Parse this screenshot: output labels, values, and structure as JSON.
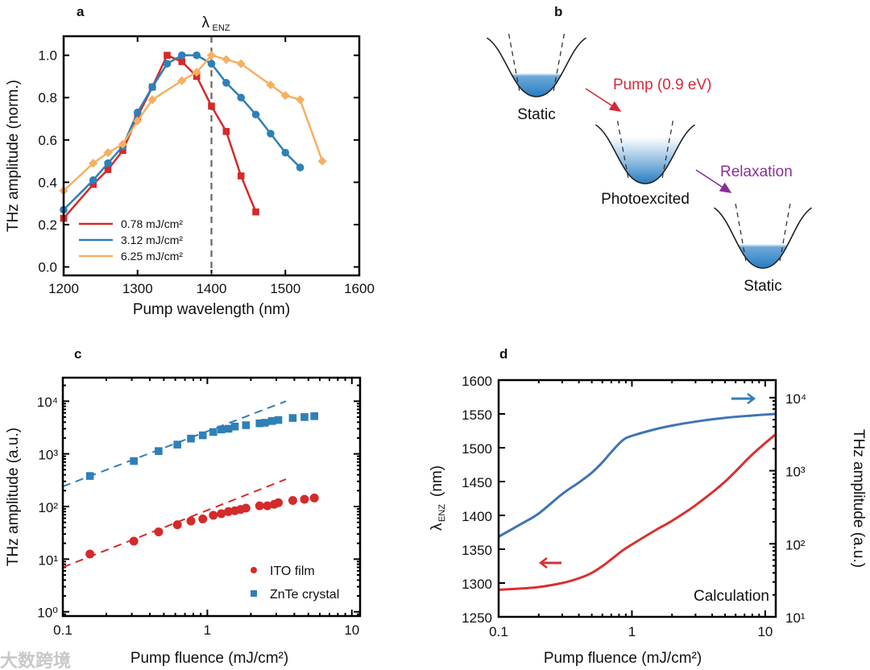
{
  "panels": {
    "a": "a",
    "b": "b",
    "c": "c",
    "d": "d"
  },
  "watermark": "大数跨境",
  "chart_data": [
    {
      "type": "line",
      "panel": "a",
      "title": "",
      "xlabel": "Pump wavelength (nm)",
      "ylabel": "THz amplitude (norm.)",
      "xlim": [
        1200,
        1600
      ],
      "ylim": [
        -0.04,
        1.09
      ],
      "xticks": [
        1200,
        1300,
        1400,
        1500,
        1600
      ],
      "xtick_labels": [
        "1200",
        "1300",
        "1400",
        "1500",
        "1600"
      ],
      "yticks": [
        0,
        0.2,
        0.4,
        0.6,
        0.8,
        1.0
      ],
      "ytick_labels": [
        "0.0",
        "0.2",
        "0.4",
        "0.6",
        "0.8",
        "1.0"
      ],
      "vline": {
        "x": 1400,
        "label": "λ",
        "label_sub": "ENZ"
      },
      "legend_position": "lower-left",
      "series": [
        {
          "name": "0.78 mJ/cm²",
          "color": "#d42a2a",
          "marker": "square",
          "x": [
            1200,
            1240,
            1260,
            1280,
            1300,
            1320,
            1340,
            1360,
            1380,
            1400,
            1420,
            1440,
            1460
          ],
          "y": [
            0.23,
            0.39,
            0.46,
            0.55,
            0.71,
            0.85,
            1.0,
            0.97,
            0.9,
            0.76,
            0.64,
            0.43,
            0.26
          ]
        },
        {
          "name": "3.12 mJ/cm²",
          "color": "#2f7fb8",
          "marker": "circle",
          "x": [
            1200,
            1240,
            1260,
            1280,
            1300,
            1320,
            1340,
            1360,
            1380,
            1400,
            1420,
            1440,
            1460,
            1480,
            1500,
            1520
          ],
          "y": [
            0.27,
            0.41,
            0.49,
            0.57,
            0.73,
            0.85,
            0.96,
            1.0,
            1.0,
            0.96,
            0.87,
            0.8,
            0.72,
            0.63,
            0.54,
            0.47
          ]
        },
        {
          "name": "6.25 mJ/cm²",
          "color": "#f5b061",
          "marker": "diamond",
          "x": [
            1200,
            1240,
            1260,
            1280,
            1300,
            1320,
            1360,
            1380,
            1400,
            1420,
            1440,
            1480,
            1500,
            1520,
            1550
          ],
          "y": [
            0.36,
            0.49,
            0.54,
            0.58,
            0.69,
            0.79,
            0.88,
            0.92,
            1.0,
            0.98,
            0.96,
            0.86,
            0.81,
            0.79,
            0.5
          ]
        }
      ]
    },
    {
      "type": "scatter",
      "panel": "c",
      "xscale": "log",
      "yscale": "log",
      "xlabel": "Pump fluence (mJ/cm²)",
      "ylabel": "THz amplitude (a.u.)",
      "xlim": [
        0.1,
        11.4
      ],
      "ylim": [
        0.83,
        28000
      ],
      "xticks": [
        0.1,
        1,
        10
      ],
      "xtick_labels": [
        "0.1",
        "1",
        "10"
      ],
      "yticks": [
        1,
        10,
        100,
        1000,
        10000
      ],
      "ytick_labels": [
        "10⁰",
        "10¹",
        "10²",
        "10³",
        "10⁴"
      ],
      "legend_position": "lower-right",
      "series": [
        {
          "name": "ITO film",
          "color": "#d42a2a",
          "marker": "circle",
          "x": [
            0.154,
            0.31,
            0.46,
            0.62,
            0.77,
            0.93,
            1.1,
            1.25,
            1.4,
            1.55,
            1.7,
            1.85,
            2.3,
            2.6,
            2.9,
            3.1,
            3.9,
            4.7,
            5.5
          ],
          "y": [
            12.5,
            22,
            33,
            45,
            53,
            58,
            68,
            73,
            80,
            83,
            88,
            93,
            103,
            103,
            110,
            118,
            130,
            137,
            145
          ],
          "fit": {
            "x": [
              0.1,
              3.5
            ],
            "y": [
              7,
              330
            ]
          }
        },
        {
          "name": "ZnTe crystal",
          "color": "#2f7fb8",
          "marker": "square",
          "x": [
            0.154,
            0.31,
            0.46,
            0.62,
            0.77,
            0.93,
            1.1,
            1.25,
            1.4,
            1.55,
            1.85,
            2.3,
            2.5,
            2.8,
            3.1,
            3.9,
            4.7,
            5.5
          ],
          "y": [
            380,
            730,
            1130,
            1500,
            1950,
            2250,
            2600,
            2900,
            3000,
            3300,
            3500,
            3800,
            3900,
            4200,
            4400,
            4800,
            5000,
            5200
          ],
          "fit": {
            "x": [
              0.1,
              3.5
            ],
            "y": [
              240,
              10000
            ]
          }
        }
      ]
    },
    {
      "type": "line",
      "panel": "d",
      "xscale": "log",
      "xlabel": "Pump fluence (mJ/cm²)",
      "ylabel_left": "λ",
      "ylabel_left_sub": "ENZ",
      "ylabel_left_unit": " (nm)",
      "ylabel_right": "THz amplitude (a.u.)",
      "annotation": "Calculation",
      "xlim": [
        0.1,
        12
      ],
      "ylim_left": [
        1250,
        1600
      ],
      "ylim_right": [
        10,
        17400
      ],
      "xticks": [
        0.1,
        1,
        10
      ],
      "xtick_labels": [
        "0.1",
        "1",
        "10"
      ],
      "yticks_left": [
        1250,
        1300,
        1350,
        1400,
        1450,
        1500,
        1550,
        1600
      ],
      "ytick_labels_left": [
        "1250",
        "1300",
        "1350",
        "1400",
        "1450",
        "1500",
        "1550",
        "1600"
      ],
      "yticks_right": [
        10,
        100,
        1000,
        10000
      ],
      "ytick_labels_right": [
        "10¹",
        "10²",
        "10³",
        "10⁴"
      ],
      "series": [
        {
          "name": "λENZ",
          "axis": "left",
          "color": "#d93030",
          "x": [
            0.1,
            0.15,
            0.2,
            0.3,
            0.4,
            0.5,
            0.6,
            0.7,
            0.85,
            1,
            1.5,
            2,
            3,
            5,
            8,
            12
          ],
          "y": [
            1290,
            1292,
            1294,
            1300,
            1307,
            1315,
            1325,
            1335,
            1348,
            1357,
            1378,
            1392,
            1415,
            1450,
            1490,
            1520
          ]
        },
        {
          "name": "THz amplitude",
          "axis": "right",
          "color": "#3f74b5",
          "x": [
            0.1,
            0.15,
            0.2,
            0.3,
            0.4,
            0.5,
            0.6,
            0.7,
            0.85,
            1,
            1.5,
            2,
            3,
            5,
            8,
            12
          ],
          "y": [
            125,
            190,
            260,
            480,
            690,
            940,
            1300,
            1800,
            2600,
            3000,
            3700,
            4150,
            4700,
            5300,
            5700,
            6000
          ]
        }
      ]
    }
  ],
  "diagram": {
    "wells": [
      {
        "label": "Static",
        "state": "static"
      },
      {
        "label": "Photoexcited",
        "state": "excited"
      },
      {
        "label": "Static",
        "state": "static"
      }
    ],
    "transitions": [
      {
        "label": "Pump (0.9 eV)",
        "color": "#d42a3a"
      },
      {
        "label": "Relaxation",
        "color": "#8a2f9a"
      }
    ]
  }
}
